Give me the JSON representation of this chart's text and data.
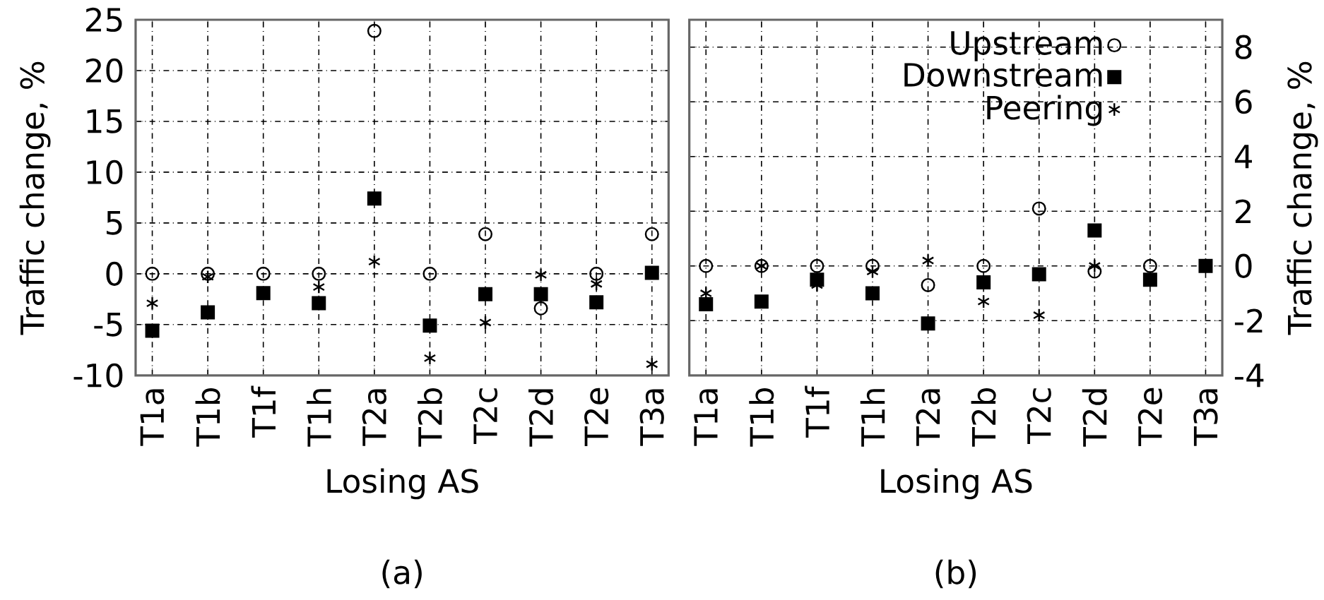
{
  "chart_data": [
    {
      "type": "scatter",
      "xlabel": "Losing AS",
      "ylabel": "Traffic change, %",
      "annotations": [
        "(a)"
      ],
      "categories": [
        "T1a",
        "T1b",
        "T1f",
        "T1h",
        "T2a",
        "T2b",
        "T2c",
        "T2d",
        "T2e",
        "T3a"
      ],
      "ylim": [
        -10,
        25
      ],
      "yticks": [
        -10,
        -5,
        0,
        5,
        10,
        15,
        20,
        25
      ],
      "grid": true,
      "legend": false,
      "series": [
        {
          "color": "#000000",
          "marker": "circle",
          "values": [
            0,
            0,
            0,
            0,
            23.9,
            0,
            3.9,
            -3.4,
            0,
            3.9
          ]
        },
        {
          "color": "#000000",
          "marker": "square",
          "values": [
            -5.6,
            -3.8,
            -1.9,
            -2.9,
            7.4,
            -5.1,
            -2.0,
            -2.0,
            -2.8,
            0.1
          ]
        },
        {
          "color": "#000000",
          "marker": "cross",
          "values": [
            -2.9,
            -0.3,
            null,
            -1.3,
            1.2,
            -8.3,
            -4.8,
            -0.1,
            -1.0,
            -8.9
          ]
        }
      ]
    },
    {
      "type": "scatter",
      "xlabel": "Losing AS",
      "y2label": "Traffic change, %",
      "annotations": [
        "(b)"
      ],
      "categories": [
        "T1a",
        "T1b",
        "T1f",
        "T1h",
        "T2a",
        "T2b",
        "T2c",
        "T2d",
        "T2e",
        "T3a"
      ],
      "y2lim": [
        -4,
        9
      ],
      "y2ticks": [
        -4,
        -2,
        0,
        2,
        4,
        6,
        8
      ],
      "grid": true,
      "legend": "top",
      "series": [
        {
          "name": "Upstream",
          "color": "#000000",
          "marker": "circle",
          "axis": "y2",
          "values": [
            0,
            0,
            0,
            0,
            -0.7,
            0,
            2.1,
            -0.2,
            0,
            null
          ]
        },
        {
          "name": "Downstream",
          "color": "#000000",
          "marker": "square",
          "axis": "y2",
          "values": [
            -1.4,
            -1.3,
            -0.5,
            -1.0,
            -2.1,
            -0.6,
            -0.3,
            1.3,
            -0.5,
            0
          ]
        },
        {
          "name": "Peering",
          "color": "#000000",
          "marker": "cross",
          "axis": "y2",
          "values": [
            -1.0,
            0,
            -0.7,
            -0.2,
            0.2,
            -1.3,
            -1.8,
            0,
            null,
            null
          ]
        }
      ]
    }
  ]
}
